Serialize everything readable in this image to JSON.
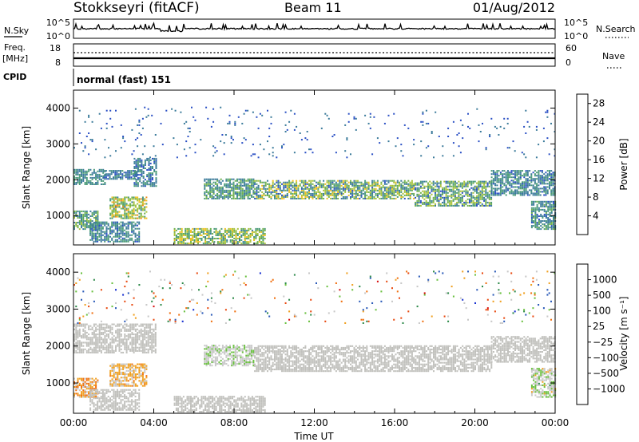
{
  "header": {
    "station": "Stokkseyri (fitACF)",
    "beam": "Beam 11",
    "date": "01/Aug/2012"
  },
  "aux_panels": {
    "nsky_label": "N.Sky",
    "nsky_ticks": [
      "10^5",
      "10^0"
    ],
    "nsearch_label": "N.Search",
    "nsearch_ticks": [
      "10^5",
      "10^0"
    ],
    "freq_label": "Freq.",
    "freq_unit": "[MHz]",
    "freq_ticks": [
      "18",
      "8"
    ],
    "nave_label": "Nave",
    "nave_ticks": [
      "60",
      "0"
    ],
    "cpid_label": "CPID",
    "cpid_value": "normal (fast) 151"
  },
  "colors": {
    "power_scale": [
      "#0a1ee6",
      "#2a4fc4",
      "#3a7a9a",
      "#4a9a78",
      "#6fb04a",
      "#a8c23a",
      "#f0c020",
      "#f08a18",
      "#e85a10",
      "#d81010"
    ],
    "velocity_scale": [
      "#1830d0",
      "#2a5ab8",
      "#2e8a4a",
      "#6ac040",
      "#c8c8c8",
      "#c8c8c8",
      "#f0a020",
      "#f07010",
      "#e84a10",
      "#d81010"
    ],
    "ground_scatter": "#c0c0bc"
  },
  "chart_data": [
    {
      "type": "heatmap",
      "name": "power",
      "xlabel": "",
      "ylabel": "Slant Range [km]",
      "x_ticks": [],
      "y_ticks": [
        "1000",
        "2000",
        "3000",
        "4000"
      ],
      "xlim_hours": [
        0,
        24
      ],
      "ylim_km": [
        180,
        4500
      ],
      "colorbar": {
        "label": "Power [dB]",
        "ticks": [
          "4",
          "8",
          "12",
          "16",
          "20",
          "24",
          "28"
        ],
        "range": [
          0,
          30
        ]
      },
      "regions": [
        {
          "t": [
            0.0,
            1.6
          ],
          "r": [
            1850,
            2300
          ],
          "v": [
            6,
            12
          ]
        },
        {
          "t": [
            1.5,
            3.2
          ],
          "r": [
            2000,
            2250
          ],
          "v": [
            5,
            10
          ]
        },
        {
          "t": [
            3.0,
            4.1
          ],
          "r": [
            1800,
            2600
          ],
          "v": [
            5,
            11
          ]
        },
        {
          "t": [
            0.0,
            1.2
          ],
          "r": [
            600,
            1100
          ],
          "v": [
            6,
            16
          ]
        },
        {
          "t": [
            0.8,
            3.3
          ],
          "r": [
            250,
            800
          ],
          "v": [
            5,
            12
          ]
        },
        {
          "t": [
            1.8,
            3.6
          ],
          "r": [
            900,
            1500
          ],
          "v": [
            8,
            22
          ]
        },
        {
          "t": [
            5.0,
            9.5
          ],
          "r": [
            200,
            620
          ],
          "v": [
            8,
            20
          ]
        },
        {
          "t": [
            6.5,
            9.0
          ],
          "r": [
            1450,
            2000
          ],
          "v": [
            6,
            14
          ]
        },
        {
          "t": [
            9.0,
            17.0
          ],
          "r": [
            1450,
            1950
          ],
          "v": [
            5,
            20
          ]
        },
        {
          "t": [
            17.0,
            20.8
          ],
          "r": [
            1250,
            1950
          ],
          "v": [
            5,
            18
          ]
        },
        {
          "t": [
            20.8,
            24.0
          ],
          "r": [
            1550,
            2250
          ],
          "v": [
            5,
            12
          ]
        },
        {
          "t": [
            22.8,
            24.0
          ],
          "r": [
            600,
            1400
          ],
          "v": [
            5,
            13
          ]
        },
        {
          "t": [
            0.0,
            24.0
          ],
          "r": [
            2600,
            4000
          ],
          "v": [
            4,
            8
          ],
          "sparse": true
        }
      ]
    },
    {
      "type": "heatmap",
      "name": "velocity",
      "xlabel": "Time UT",
      "ylabel": "Slant Range [km]",
      "x_ticks": [
        "00:00",
        "04:00",
        "08:00",
        "12:00",
        "16:00",
        "20:00",
        "00:00"
      ],
      "y_ticks": [
        "1000",
        "2000",
        "3000",
        "4000"
      ],
      "xlim_hours": [
        0,
        24
      ],
      "ylim_km": [
        180,
        4500
      ],
      "colorbar": {
        "label": "Velocity [m s⁻¹]",
        "ticks": [
          "1000",
          "500",
          "100",
          "25",
          "−25",
          "−100",
          "−500",
          "−1000"
        ],
        "range": [
          -1200,
          1200
        ]
      },
      "regions": [
        {
          "t": [
            0.0,
            4.1
          ],
          "r": [
            1800,
            2600
          ],
          "v": [
            -20,
            20
          ],
          "ground": true
        },
        {
          "t": [
            0.0,
            1.2
          ],
          "r": [
            600,
            1100
          ],
          "v": [
            -700,
            -50
          ]
        },
        {
          "t": [
            0.8,
            3.3
          ],
          "r": [
            250,
            800
          ],
          "v": [
            -20,
            20
          ],
          "ground": true
        },
        {
          "t": [
            1.8,
            3.6
          ],
          "r": [
            900,
            1500
          ],
          "v": [
            -500,
            -100
          ]
        },
        {
          "t": [
            5.0,
            9.5
          ],
          "r": [
            200,
            620
          ],
          "v": [
            -20,
            20
          ],
          "ground": true
        },
        {
          "t": [
            6.5,
            9.0
          ],
          "r": [
            1450,
            2000
          ],
          "v": [
            50,
            300
          ]
        },
        {
          "t": [
            9.0,
            20.8
          ],
          "r": [
            1300,
            2000
          ],
          "v": [
            -20,
            20
          ],
          "ground": true
        },
        {
          "t": [
            20.8,
            24.0
          ],
          "r": [
            1550,
            2250
          ],
          "v": [
            -20,
            20
          ],
          "ground": true
        },
        {
          "t": [
            22.8,
            24.0
          ],
          "r": [
            600,
            1400
          ],
          "v": [
            -300,
            500
          ]
        },
        {
          "t": [
            0.0,
            24.0
          ],
          "r": [
            2600,
            4000
          ],
          "v": [
            -1000,
            1000
          ],
          "sparse": true
        }
      ]
    }
  ]
}
